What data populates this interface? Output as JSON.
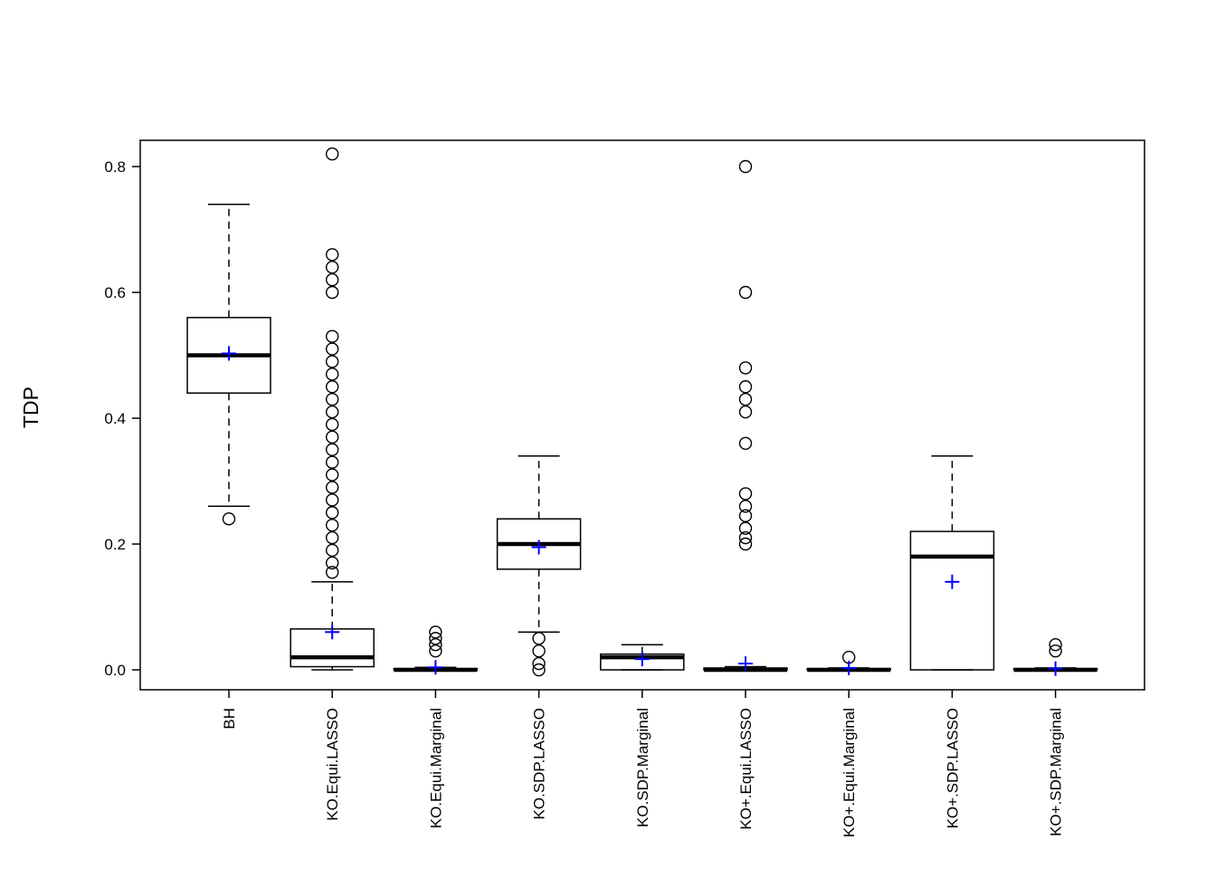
{
  "chart_data": {
    "type": "boxplot",
    "title": "",
    "xlabel": "",
    "ylabel": "TDP",
    "ylim": [
      0.0,
      0.8
    ],
    "grid": false,
    "legend": "none",
    "yticks": [
      0.0,
      0.2,
      0.4,
      0.6,
      0.8
    ],
    "ytick_labels": [
      "0.0",
      "0.2",
      "0.4",
      "0.6",
      "0.8"
    ],
    "categories": [
      "BH",
      "KO.Equi.LASSO",
      "KO.Equi.Marginal",
      "KO.SDP.LASSO",
      "KO.SDP.Marginal",
      "KO+.Equi.LASSO",
      "KO+.Equi.Marginal",
      "KO+.SDP.LASSO",
      "KO+.SDP.Marginal"
    ],
    "series": [
      {
        "name": "BH",
        "whisker_low": 0.26,
        "q1": 0.44,
        "median": 0.5,
        "q3": 0.56,
        "whisker_high": 0.74,
        "mean": 0.503,
        "outliers": [
          0.24
        ]
      },
      {
        "name": "KO.Equi.LASSO",
        "whisker_low": 0.0,
        "q1": 0.005,
        "median": 0.02,
        "q3": 0.065,
        "whisker_high": 0.14,
        "mean": 0.06,
        "outliers": [
          0.82,
          0.66,
          0.64,
          0.62,
          0.6,
          0.53,
          0.51,
          0.49,
          0.47,
          0.45,
          0.43,
          0.41,
          0.39,
          0.37,
          0.35,
          0.33,
          0.31,
          0.29,
          0.27,
          0.25,
          0.23,
          0.21,
          0.19,
          0.17,
          0.155
        ]
      },
      {
        "name": "KO.Equi.Marginal",
        "whisker_low": 0.0,
        "q1": 0.0,
        "median": 0.0,
        "q3": 0.002,
        "whisker_high": 0.004,
        "mean": 0.004,
        "outliers": [
          0.06,
          0.05,
          0.04,
          0.03
        ]
      },
      {
        "name": "KO.SDP.LASSO",
        "whisker_low": 0.06,
        "q1": 0.16,
        "median": 0.2,
        "q3": 0.24,
        "whisker_high": 0.34,
        "mean": 0.195,
        "outliers": [
          0.05,
          0.03,
          0.01,
          0.0
        ]
      },
      {
        "name": "KO.SDP.Marginal",
        "whisker_low": 0.0,
        "q1": 0.0,
        "median": 0.02,
        "q3": 0.025,
        "whisker_high": 0.04,
        "mean": 0.017,
        "outliers": []
      },
      {
        "name": "KO+.Equi.LASSO",
        "whisker_low": 0.0,
        "q1": 0.0,
        "median": 0.0,
        "q3": 0.003,
        "whisker_high": 0.005,
        "mean": 0.01,
        "outliers": [
          0.8,
          0.6,
          0.48,
          0.45,
          0.43,
          0.41,
          0.36,
          0.28,
          0.26,
          0.245,
          0.225,
          0.21,
          0.2
        ]
      },
      {
        "name": "KO+.Equi.Marginal",
        "whisker_low": 0.0,
        "q1": 0.0,
        "median": 0.0,
        "q3": 0.002,
        "whisker_high": 0.003,
        "mean": 0.003,
        "outliers": [
          0.02
        ]
      },
      {
        "name": "KO+.SDP.LASSO",
        "whisker_low": 0.0,
        "q1": 0.0,
        "median": 0.18,
        "q3": 0.22,
        "whisker_high": 0.34,
        "mean": 0.14,
        "outliers": []
      },
      {
        "name": "KO+.SDP.Marginal",
        "whisker_low": 0.0,
        "q1": 0.0,
        "median": 0.0,
        "q3": 0.002,
        "whisker_high": 0.003,
        "mean": 0.002,
        "outliers": [
          0.04,
          0.03
        ]
      }
    ],
    "style": {
      "box_color": "#000000",
      "mean_color": "#0000ff",
      "mean_marker": "+",
      "outlier_marker": "open-circle",
      "whisker_linestyle": "dashed",
      "background": "#ffffff"
    }
  }
}
